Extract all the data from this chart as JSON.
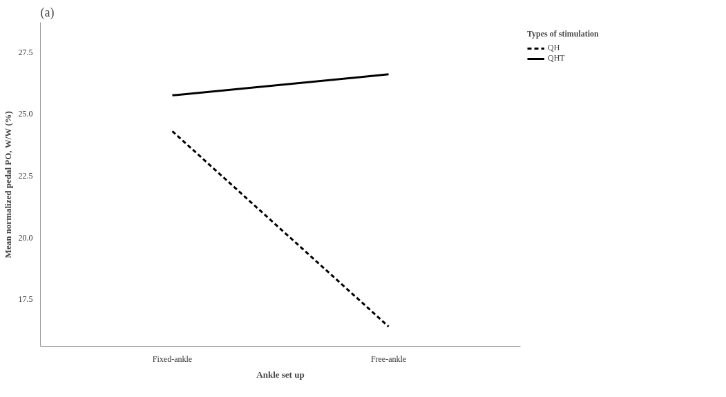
{
  "chart_data": {
    "type": "line",
    "xlabel": "Ankle set up",
    "ylabel": "Mean normalized pedal PO, W/W (%)",
    "legend_title": "Types of stimulation",
    "annotations": [
      "(a)"
    ],
    "categories": [
      "Fixed-ankle",
      "Free-ankle"
    ],
    "series": [
      {
        "name": "QH",
        "color": "#000000",
        "line_style": "dashed",
        "values": [
          24.3,
          16.4
        ]
      },
      {
        "name": "QHT",
        "color": "#000000",
        "line_style": "solid",
        "values": [
          25.75,
          26.6
        ]
      }
    ],
    "ylim": [
      15.6,
      28.7
    ],
    "yticks": [
      {
        "value": 17.5,
        "label": "17.5"
      },
      {
        "value": 20,
        "label": "20.0"
      },
      {
        "value": 22.5,
        "label": "22.5"
      },
      {
        "value": 25,
        "label": "25.0"
      },
      {
        "value": 27.5,
        "label": "27.5"
      }
    ],
    "grid": false,
    "legend": "right",
    "marker": "none"
  }
}
